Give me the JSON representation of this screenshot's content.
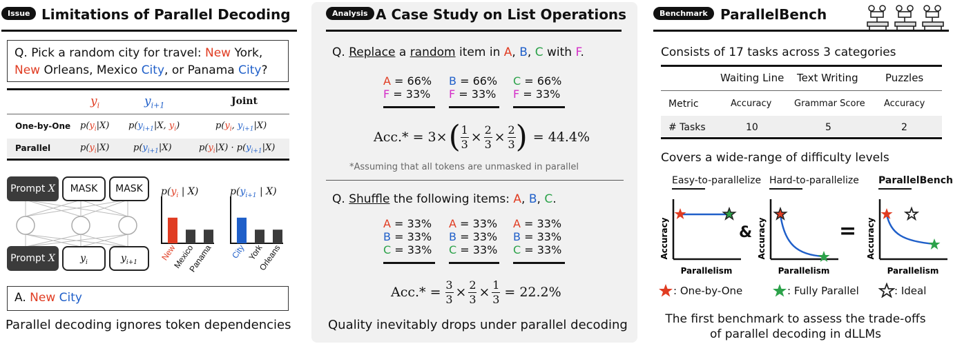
{
  "colors": {
    "red": "#e03c22",
    "blue": "#1f5fc9",
    "green": "#2ca24a",
    "magenta": "#d42ec8",
    "dark": "#3b3b3b"
  },
  "left": {
    "badge": "Issue",
    "title": "Limitations of Parallel Decoding",
    "question": {
      "q": "Q.",
      "pre": "Pick a random city for travel:",
      "new1": "New",
      "york": "York,",
      "new2": "New",
      "orleans": "Orleans, Mexico",
      "city1": "City",
      "or_panama": ", or Panama",
      "city2": "City",
      "qmark": "?"
    },
    "table": {
      "headers": [
        "y_i",
        "y_{i+1}",
        "Joint"
      ],
      "rows": [
        {
          "label": "One-by-One",
          "c1": "p(y_i|X)",
          "c2": "p(y_{i+1}|X, y_i)",
          "c3": "p(y_i, y_{i+1}|X)"
        },
        {
          "label": "Parallel",
          "c1": "p(y_i|X)",
          "c2": "p(y_{i+1}|X)",
          "c3": "p(y_i|X) · p(y_{i+1}|X)"
        }
      ]
    },
    "model": {
      "prompt": "Prompt",
      "var_x": "X",
      "mask": "MASK",
      "out_i": "y",
      "out_i_sub": "i",
      "out_next": "y",
      "out_next_sub": "i+1"
    },
    "hist1": {
      "title": "p(y_i | X)",
      "labels": [
        "New",
        "Mexico",
        "Panama"
      ],
      "values": [
        0.62,
        0.33,
        0.33
      ]
    },
    "hist2": {
      "title": "p(y_{i+1} | X)",
      "labels": [
        "City",
        "York",
        "Orleans"
      ],
      "values": [
        0.62,
        0.33,
        0.33
      ]
    },
    "answer": {
      "a": "A.",
      "new": "New",
      "city": "City"
    },
    "caption": "Parallel decoding ignores token dependencies"
  },
  "mid": {
    "badge": "Analysis",
    "title": "A Case Study on List Operations",
    "q1": {
      "q": "Q.",
      "replace": "Replace",
      "a_pre": "a",
      "random": "random",
      "rest": "item in",
      "A": "A",
      "B": "B",
      "C": "C",
      "with": "with",
      "F": "F",
      "comma": ",",
      "dot": "."
    },
    "q1_cols": [
      {
        "l1": "A",
        "v1": "= 66%",
        "l2": "F",
        "v2": "= 33%"
      },
      {
        "l1": "B",
        "v1": "= 66%",
        "l2": "F",
        "v2": "= 33%"
      },
      {
        "l1": "C",
        "v1": "= 66%",
        "l2": "F",
        "v2": "= 33%"
      }
    ],
    "eq1_left": "Acc.* = 3×",
    "eq1_right": "= 44.4%",
    "eq1_fracs": [
      {
        "n": "1",
        "d": "3"
      },
      {
        "n": "2",
        "d": "3"
      },
      {
        "n": "2",
        "d": "3"
      }
    ],
    "note": "*Assuming that all tokens are unmasked in parallel",
    "q2": {
      "q": "Q.",
      "shuffle": "Shuffle",
      "rest": "the following items:",
      "A": "A",
      "B": "B",
      "C": "C"
    },
    "q2_cols": [
      {
        "a": "A",
        "b": "B",
        "c": "C",
        "v": "= 33%"
      },
      {
        "a": "A",
        "b": "B",
        "c": "C",
        "v": "= 33%"
      },
      {
        "a": "A",
        "b": "B",
        "c": "C",
        "v": "= 33%"
      }
    ],
    "eq2_left": "Acc.* =",
    "eq2_right": "= 22.2%",
    "eq2_fracs": [
      {
        "n": "3",
        "d": "3"
      },
      {
        "n": "2",
        "d": "3"
      },
      {
        "n": "1",
        "d": "3"
      }
    ],
    "caption": "Quality inevitably drops under parallel decoding"
  },
  "right": {
    "badge": "Benchmark",
    "title": "ParallelBench",
    "subtitle1": "Consists of 17 tasks across 3 categories",
    "table": {
      "headers": [
        "",
        "Waiting Line",
        "Text Writing",
        "Puzzles"
      ],
      "rows": [
        [
          "Metric",
          "Accuracy",
          "Grammar Score",
          "Accuracy"
        ],
        [
          "# Tasks",
          "10",
          "5",
          "2"
        ]
      ]
    },
    "subtitle2": "Covers a wide-range of difficulty levels",
    "plots": {
      "easy": "Easy-to-parallelize",
      "hard": "Hard-to-parallelize",
      "bench": "ParallelBench",
      "ylabel": "Accuracy",
      "xlabel": "Parallelism",
      "amp": "&",
      "eq": "="
    },
    "legend": {
      "one": ": One-by-One",
      "full": ": Fully Parallel",
      "ideal": ": Ideal"
    },
    "caption1": "The first benchmark to assess the trade-offs",
    "caption2": "of parallel decoding in dLLMs"
  }
}
